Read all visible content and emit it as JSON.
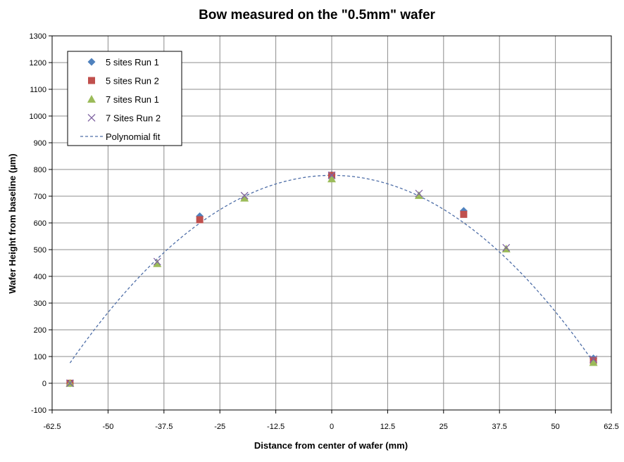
{
  "chart_data": {
    "type": "scatter",
    "title": "Bow measured on the \"0.5mm\" wafer",
    "xlabel": "Distance from center of wafer (mm)",
    "ylabel": "Wafer Height from baseline (µm)",
    "xlim": [
      -62.5,
      62.5
    ],
    "ylim": [
      -100,
      1300
    ],
    "xticks": [
      -62.5,
      -50,
      -37.5,
      -25,
      -12.5,
      0,
      12.5,
      25,
      37.5,
      50,
      62.5
    ],
    "xtick_labels": [
      "-62.5",
      "-50",
      "-37.5",
      "-25",
      "-12.5",
      "0",
      "12.5",
      "25",
      "37.5",
      "50",
      "62.5"
    ],
    "yticks": [
      -100,
      0,
      100,
      200,
      300,
      400,
      500,
      600,
      700,
      800,
      900,
      1000,
      1100,
      1200,
      1300
    ],
    "ytick_labels": [
      "-100",
      "0",
      "100",
      "200",
      "300",
      "400",
      "500",
      "600",
      "700",
      "800",
      "900",
      "1000",
      "1100",
      "1200",
      "1300"
    ],
    "grid": true,
    "legend_position": "top-left",
    "series": [
      {
        "name": "5 sites Run 1",
        "marker": "diamond",
        "color": "#4F81BD",
        "x": [
          -58.5,
          -29.5,
          0,
          29.5,
          58.5
        ],
        "y": [
          0,
          625,
          780,
          645,
          93
        ]
      },
      {
        "name": "5 sites Run 2",
        "marker": "square",
        "color": "#C0504D",
        "x": [
          -58.5,
          -29.5,
          0,
          29.5,
          58.5
        ],
        "y": [
          0,
          612,
          778,
          632,
          85
        ]
      },
      {
        "name": "7 sites Run 1",
        "marker": "triangle",
        "color": "#9BBB59",
        "x": [
          -58.5,
          -39,
          -19.5,
          0,
          19.5,
          39,
          58.5
        ],
        "y": [
          0,
          448,
          693,
          765,
          703,
          503,
          78
        ]
      },
      {
        "name": "7 Sites Run 2",
        "marker": "x",
        "color": "#8064A2",
        "x": [
          -58.5,
          -39,
          -19.5,
          0,
          19.5,
          39,
          58.5
        ],
        "y": [
          0,
          455,
          702,
          778,
          710,
          507,
          90
        ]
      }
    ],
    "fit": {
      "name": "Polynomial fit",
      "style": "dashed",
      "color": "#4F6FA8",
      "x_range": [
        -58.5,
        58.5
      ],
      "coefficients_a0_a1_a2": [
        778,
        0.0256,
        -0.2047
      ]
    }
  }
}
